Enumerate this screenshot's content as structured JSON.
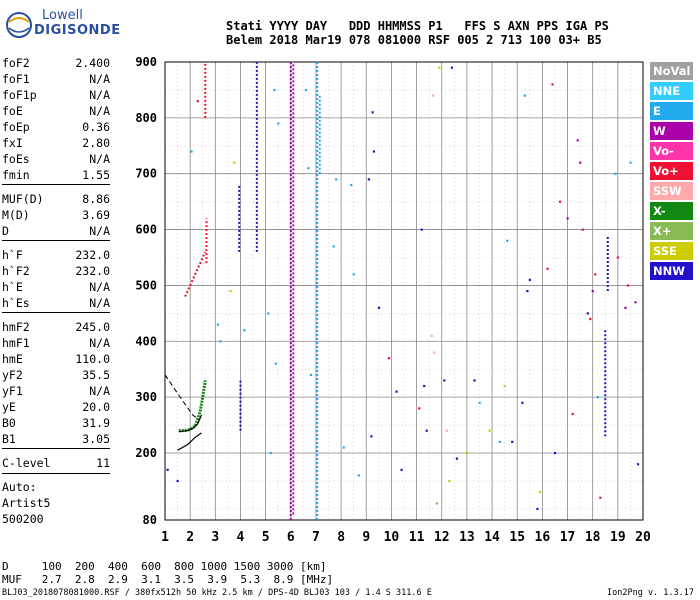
{
  "logo": {
    "line1": "Lowell",
    "line2": "DIGISONDE"
  },
  "header": {
    "line1": "Stati YYYY DAY   DDD HHMMSS P1   FFS S AXN PPS IGA PS",
    "line2": "Belem 2018 Mar19 078 081000 RSF 005 2 713 100 03+ B5"
  },
  "params": {
    "group1": [
      {
        "name": "foF2",
        "value": "2.400"
      },
      {
        "name": "foF1",
        "value": "N/A"
      },
      {
        "name": "foF1p",
        "value": "N/A"
      },
      {
        "name": "foE",
        "value": "N/A"
      },
      {
        "name": "foEp",
        "value": "0.36"
      },
      {
        "name": "fxI",
        "value": "2.80"
      },
      {
        "name": "foEs",
        "value": "N/A"
      },
      {
        "name": "fmin",
        "value": "1.55"
      }
    ],
    "group2": [
      {
        "name": "MUF(D)",
        "value": "8.86"
      },
      {
        "name": "M(D)",
        "value": "3.69"
      },
      {
        "name": "D",
        "value": "N/A"
      }
    ],
    "group3": [
      {
        "name": "h`F",
        "value": "232.0"
      },
      {
        "name": "h`F2",
        "value": "232.0"
      },
      {
        "name": "h`E",
        "value": "N/A"
      },
      {
        "name": "h`Es",
        "value": "N/A"
      }
    ],
    "group4": [
      {
        "name": "hmF2",
        "value": "245.0"
      },
      {
        "name": "hmF1",
        "value": "N/A"
      },
      {
        "name": "hmE",
        "value": "110.0"
      },
      {
        "name": "yF2",
        "value": "35.5"
      },
      {
        "name": "yF1",
        "value": "N/A"
      },
      {
        "name": "yE",
        "value": "20.0"
      },
      {
        "name": "B0",
        "value": "31.9"
      },
      {
        "name": "B1",
        "value": "3.05"
      }
    ],
    "clevel": {
      "name": "C-level",
      "value": "11"
    },
    "auto": [
      "Auto:",
      "Artist5",
      "500200"
    ]
  },
  "legend": [
    {
      "label": "NoVal",
      "color": "#a0a0a0"
    },
    {
      "label": "NNE",
      "color": "#33ccff"
    },
    {
      "label": "E",
      "color": "#22aaee"
    },
    {
      "label": "W",
      "color": "#aa00aa"
    },
    {
      "label": "Vo-",
      "color": "#ff33aa"
    },
    {
      "label": "Vo+",
      "color": "#ee1133"
    },
    {
      "label": "SSW",
      "color": "#ffaaaa"
    },
    {
      "label": "X-",
      "color": "#118811"
    },
    {
      "label": "X+",
      "color": "#88bb55"
    },
    {
      "label": "SSE",
      "color": "#cccc00"
    },
    {
      "label": "NNW",
      "color": "#2211cc"
    }
  ],
  "muf_table": {
    "line1": "D     100  200  400  600  800 1000 1500 3000 [km]",
    "line2": "MUF   2.7  2.8  2.9  3.1  3.5  3.9  5.3  8.9 [MHz]"
  },
  "footer": {
    "left": "BLJ03_2018078081000.RSF / 380fx512h 50 kHz 2.5 km / DPS-4D BLJ03 103 / 1.4 S 311.6 E",
    "right": "Ion2Png v. 1.3.17"
  },
  "chart_data": {
    "type": "scatter",
    "xlabel": "",
    "ylabel": "",
    "xlim": [
      1,
      20
    ],
    "ylim": [
      80,
      900
    ],
    "xticks": [
      1,
      2,
      3,
      4,
      5,
      6,
      7,
      8,
      9,
      10,
      11,
      12,
      13,
      14,
      15,
      16,
      17,
      18,
      19,
      20
    ],
    "yticks": [
      80,
      200,
      300,
      400,
      500,
      600,
      700,
      800,
      900
    ],
    "grid": true,
    "vertical_traces": [
      {
        "x": 4.65,
        "y0": 560,
        "y1": 900,
        "color": "#2211cc"
      },
      {
        "x": 4.0,
        "y0": 240,
        "y1": 330,
        "color": "#2211cc"
      },
      {
        "x": 3.95,
        "y0": 560,
        "y1": 680,
        "color": "#2211cc"
      },
      {
        "x": 6.0,
        "y0": 80,
        "y1": 900,
        "color": "#aa00aa"
      },
      {
        "x": 6.1,
        "y0": 90,
        "y1": 900,
        "color": "#aa00aa"
      },
      {
        "x": 7.05,
        "y0": 80,
        "y1": 900,
        "color": "#22aaee"
      },
      {
        "x": 7.15,
        "y0": 700,
        "y1": 840,
        "color": "#22aaee"
      },
      {
        "x": 18.5,
        "y0": 230,
        "y1": 420,
        "color": "#2211cc"
      },
      {
        "x": 18.6,
        "y0": 490,
        "y1": 590,
        "color": "#2211cc"
      },
      {
        "x": 2.65,
        "y0": 540,
        "y1": 620,
        "color": "#ee1133"
      },
      {
        "x": 2.6,
        "y0": 800,
        "y1": 900,
        "color": "#ee1133"
      }
    ],
    "trace_f2": {
      "color": "#118811",
      "points": [
        [
          1.55,
          240
        ],
        [
          1.8,
          240
        ],
        [
          2.0,
          242
        ],
        [
          2.2,
          248
        ],
        [
          2.3,
          260
        ],
        [
          2.4,
          275
        ],
        [
          2.5,
          300
        ],
        [
          2.6,
          330
        ]
      ]
    },
    "profile_curve": {
      "color": "#000000",
      "points": [
        [
          1.55,
          238
        ],
        [
          1.9,
          240
        ],
        [
          2.1,
          244
        ],
        [
          2.3,
          252
        ],
        [
          2.45,
          268
        ]
      ]
    },
    "profile_lower": {
      "color": "#000000",
      "points": [
        [
          1.5,
          205
        ],
        [
          1.9,
          215
        ],
        [
          2.2,
          228
        ],
        [
          2.45,
          236
        ]
      ]
    },
    "profile_dashed": {
      "color": "#000000",
      "points": [
        [
          1.0,
          340
        ],
        [
          1.6,
          300
        ],
        [
          2.1,
          268
        ],
        [
          2.35,
          260
        ]
      ]
    },
    "oblique_trace": {
      "color": "#ee1133",
      "points": [
        [
          1.8,
          480
        ],
        [
          2.0,
          500
        ],
        [
          2.2,
          520
        ],
        [
          2.4,
          540
        ],
        [
          2.6,
          560
        ]
      ]
    },
    "scatter": [
      {
        "x": 1.5,
        "y": 150,
        "color": "#2211cc"
      },
      {
        "x": 1.1,
        "y": 170,
        "color": "#2211cc"
      },
      {
        "x": 2.05,
        "y": 740,
        "color": "#22aaee"
      },
      {
        "x": 2.3,
        "y": 830,
        "color": "#ee1133"
      },
      {
        "x": 3.1,
        "y": 430,
        "color": "#22aaee"
      },
      {
        "x": 3.2,
        "y": 400,
        "color": "#22aaee"
      },
      {
        "x": 3.6,
        "y": 490,
        "color": "#cccc00"
      },
      {
        "x": 3.75,
        "y": 720,
        "color": "#cccc00"
      },
      {
        "x": 4.15,
        "y": 420,
        "color": "#22aaee"
      },
      {
        "x": 5.35,
        "y": 850,
        "color": "#22aaee"
      },
      {
        "x": 5.5,
        "y": 790,
        "color": "#22aaee"
      },
      {
        "x": 5.2,
        "y": 200,
        "color": "#22aaee"
      },
      {
        "x": 5.1,
        "y": 450,
        "color": "#22aaee"
      },
      {
        "x": 5.4,
        "y": 360,
        "color": "#22aaee"
      },
      {
        "x": 6.6,
        "y": 850,
        "color": "#22aaee"
      },
      {
        "x": 6.7,
        "y": 710,
        "color": "#22aaee"
      },
      {
        "x": 6.8,
        "y": 340,
        "color": "#22aaee"
      },
      {
        "x": 7.8,
        "y": 690,
        "color": "#22aaee"
      },
      {
        "x": 7.7,
        "y": 570,
        "color": "#22aaee"
      },
      {
        "x": 8.5,
        "y": 520,
        "color": "#22aaee"
      },
      {
        "x": 8.4,
        "y": 680,
        "color": "#22aaee"
      },
      {
        "x": 8.1,
        "y": 210,
        "color": "#22aaee"
      },
      {
        "x": 8.7,
        "y": 160,
        "color": "#22aaee"
      },
      {
        "x": 9.2,
        "y": 230,
        "color": "#2211cc"
      },
      {
        "x": 9.3,
        "y": 740,
        "color": "#2211cc"
      },
      {
        "x": 9.25,
        "y": 810,
        "color": "#2211cc"
      },
      {
        "x": 9.1,
        "y": 690,
        "color": "#2211cc"
      },
      {
        "x": 9.5,
        "y": 460,
        "color": "#2211cc"
      },
      {
        "x": 9.9,
        "y": 370,
        "color": "#ee1133"
      },
      {
        "x": 10.2,
        "y": 310,
        "color": "#2211cc"
      },
      {
        "x": 10.4,
        "y": 170,
        "color": "#2211cc"
      },
      {
        "x": 11.1,
        "y": 280,
        "color": "#ee1133"
      },
      {
        "x": 11.3,
        "y": 320,
        "color": "#2211cc"
      },
      {
        "x": 11.2,
        "y": 600,
        "color": "#2211cc"
      },
      {
        "x": 11.4,
        "y": 240,
        "color": "#2211cc"
      },
      {
        "x": 11.6,
        "y": 410,
        "color": "#ffaaaa"
      },
      {
        "x": 11.7,
        "y": 380,
        "color": "#ffaaaa"
      },
      {
        "x": 11.8,
        "y": 110,
        "color": "#88bb55"
      },
      {
        "x": 11.9,
        "y": 890,
        "color": "#cccc00"
      },
      {
        "x": 11.65,
        "y": 840,
        "color": "#ffaaaa"
      },
      {
        "x": 12.2,
        "y": 240,
        "color": "#ffaaaa"
      },
      {
        "x": 12.3,
        "y": 150,
        "color": "#cccc00"
      },
      {
        "x": 12.1,
        "y": 330,
        "color": "#2211cc"
      },
      {
        "x": 12.4,
        "y": 890,
        "color": "#2211cc"
      },
      {
        "x": 12.6,
        "y": 190,
        "color": "#2211cc"
      },
      {
        "x": 13.0,
        "y": 200,
        "color": "#cccc00"
      },
      {
        "x": 13.3,
        "y": 330,
        "color": "#2211cc"
      },
      {
        "x": 13.5,
        "y": 290,
        "color": "#22aaee"
      },
      {
        "x": 13.9,
        "y": 240,
        "color": "#cccc00"
      },
      {
        "x": 14.3,
        "y": 220,
        "color": "#22aaee"
      },
      {
        "x": 14.5,
        "y": 320,
        "color": "#cccc00"
      },
      {
        "x": 14.6,
        "y": 580,
        "color": "#22aaee"
      },
      {
        "x": 14.8,
        "y": 220,
        "color": "#2211cc"
      },
      {
        "x": 15.2,
        "y": 290,
        "color": "#2211cc"
      },
      {
        "x": 15.4,
        "y": 490,
        "color": "#2211cc"
      },
      {
        "x": 15.5,
        "y": 510,
        "color": "#2211cc"
      },
      {
        "x": 15.3,
        "y": 840,
        "color": "#22aaee"
      },
      {
        "x": 15.8,
        "y": 100,
        "color": "#2211cc"
      },
      {
        "x": 15.9,
        "y": 130,
        "color": "#cccc00"
      },
      {
        "x": 16.2,
        "y": 530,
        "color": "#ee1133"
      },
      {
        "x": 16.4,
        "y": 860,
        "color": "#ee1133"
      },
      {
        "x": 16.5,
        "y": 200,
        "color": "#2211cc"
      },
      {
        "x": 16.7,
        "y": 650,
        "color": "#ee1133"
      },
      {
        "x": 17.0,
        "y": 620,
        "color": "#aa00aa"
      },
      {
        "x": 17.2,
        "y": 270,
        "color": "#ee1133"
      },
      {
        "x": 17.4,
        "y": 760,
        "color": "#aa00aa"
      },
      {
        "x": 17.5,
        "y": 720,
        "color": "#aa00aa"
      },
      {
        "x": 17.6,
        "y": 600,
        "color": "#ee1133"
      },
      {
        "x": 17.8,
        "y": 450,
        "color": "#2211cc"
      },
      {
        "x": 17.9,
        "y": 440,
        "color": "#ee1133"
      },
      {
        "x": 18.0,
        "y": 490,
        "color": "#aa00aa"
      },
      {
        "x": 18.1,
        "y": 520,
        "color": "#ee1133"
      },
      {
        "x": 18.2,
        "y": 300,
        "color": "#22aaee"
      },
      {
        "x": 18.3,
        "y": 120,
        "color": "#ee1133"
      },
      {
        "x": 18.9,
        "y": 700,
        "color": "#22aaee"
      },
      {
        "x": 19.0,
        "y": 550,
        "color": "#ee1133"
      },
      {
        "x": 19.3,
        "y": 460,
        "color": "#aa00aa"
      },
      {
        "x": 19.4,
        "y": 500,
        "color": "#ee1133"
      },
      {
        "x": 19.5,
        "y": 720,
        "color": "#22aaee"
      },
      {
        "x": 19.7,
        "y": 470,
        "color": "#aa00aa"
      },
      {
        "x": 19.8,
        "y": 180,
        "color": "#2211cc"
      }
    ]
  }
}
